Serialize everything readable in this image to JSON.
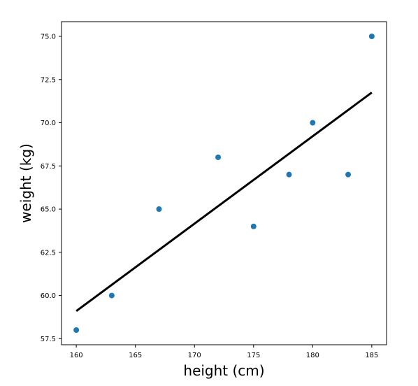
{
  "chart_data": {
    "type": "scatter",
    "xlabel": "height (cm)",
    "ylabel": "weight (kg)",
    "xlim": [
      158.75,
      186.25
    ],
    "ylim": [
      57.15,
      75.85
    ],
    "x_ticks": [
      160,
      165,
      170,
      175,
      180,
      185
    ],
    "x_tick_labels": [
      "160",
      "165",
      "170",
      "175",
      "180",
      "185"
    ],
    "y_ticks": [
      57.5,
      60.0,
      62.5,
      65.0,
      67.5,
      70.0,
      72.5,
      75.0
    ],
    "y_tick_labels": [
      "57.5",
      "60.0",
      "62.5",
      "65.0",
      "67.5",
      "70.0",
      "72.5",
      "75.0"
    ],
    "grid": false,
    "series": [
      {
        "type": "scatter",
        "color": "#1f77b4",
        "points": [
          {
            "x": 160,
            "y": 58
          },
          {
            "x": 163,
            "y": 60
          },
          {
            "x": 167,
            "y": 65
          },
          {
            "x": 172,
            "y": 68
          },
          {
            "x": 175,
            "y": 64
          },
          {
            "x": 178,
            "y": 67
          },
          {
            "x": 180,
            "y": 70
          },
          {
            "x": 183,
            "y": 67
          },
          {
            "x": 185,
            "y": 75
          }
        ]
      },
      {
        "type": "line",
        "color": "#000000",
        "points": [
          {
            "x": 160,
            "y": 59.1
          },
          {
            "x": 185,
            "y": 71.75
          }
        ]
      }
    ]
  }
}
